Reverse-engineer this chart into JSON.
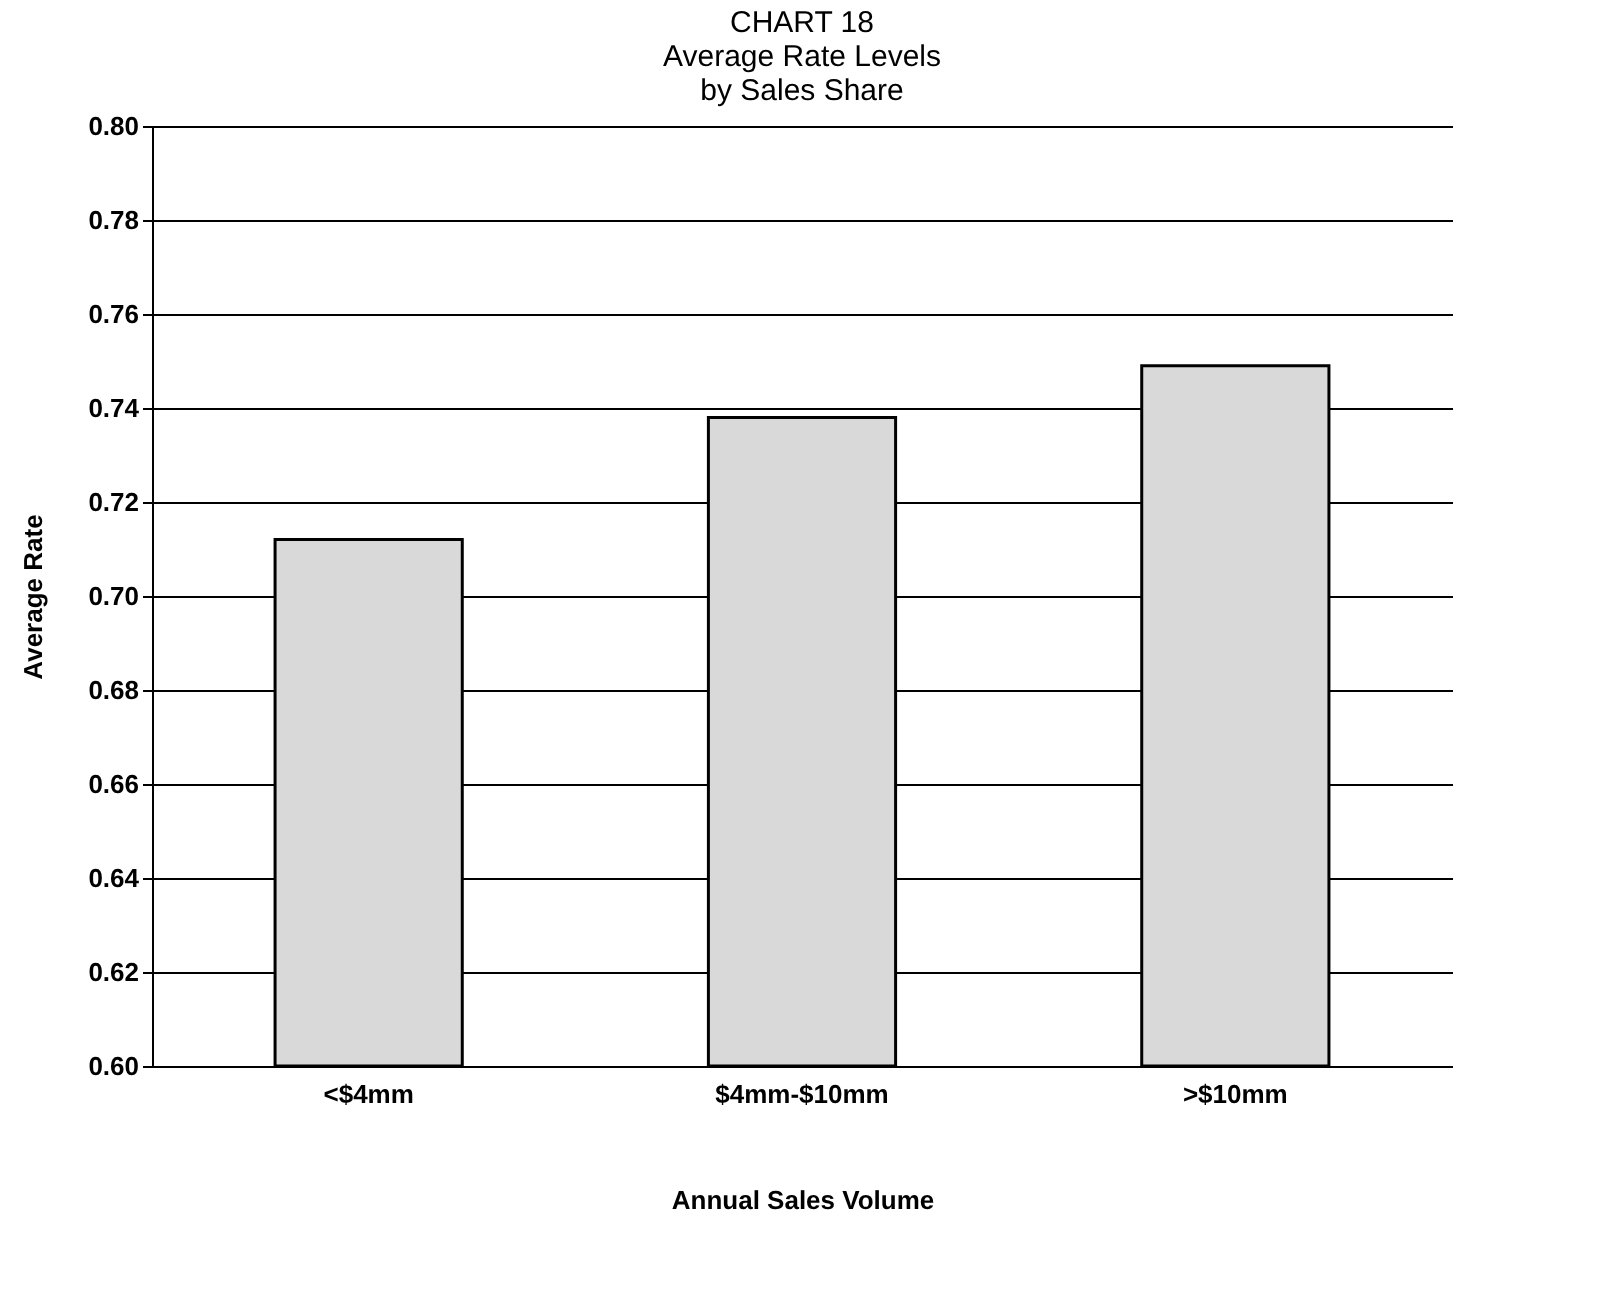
{
  "chart_data": {
    "type": "bar",
    "title": "CHART 18\nAverage Rate Levels\nby Sales Share",
    "xlabel": "Annual Sales Volume",
    "ylabel": "Average Rate",
    "categories": [
      "<$4mm",
      "$4mm-$10mm",
      ">$10mm"
    ],
    "values": [
      0.712,
      0.738,
      0.749
    ],
    "color": "#d9d9d9",
    "ylim": [
      0.6,
      0.8
    ],
    "yticks": [
      {
        "value": 0.6,
        "label": "0.60"
      },
      0.62,
      0.64,
      0.66,
      0.68,
      {
        "value": 0.7,
        "label": "0.70"
      },
      0.72,
      0.74,
      0.76,
      0.78,
      {
        "value": 0.8,
        "label": "0.80"
      }
    ],
    "grid": "y"
  }
}
